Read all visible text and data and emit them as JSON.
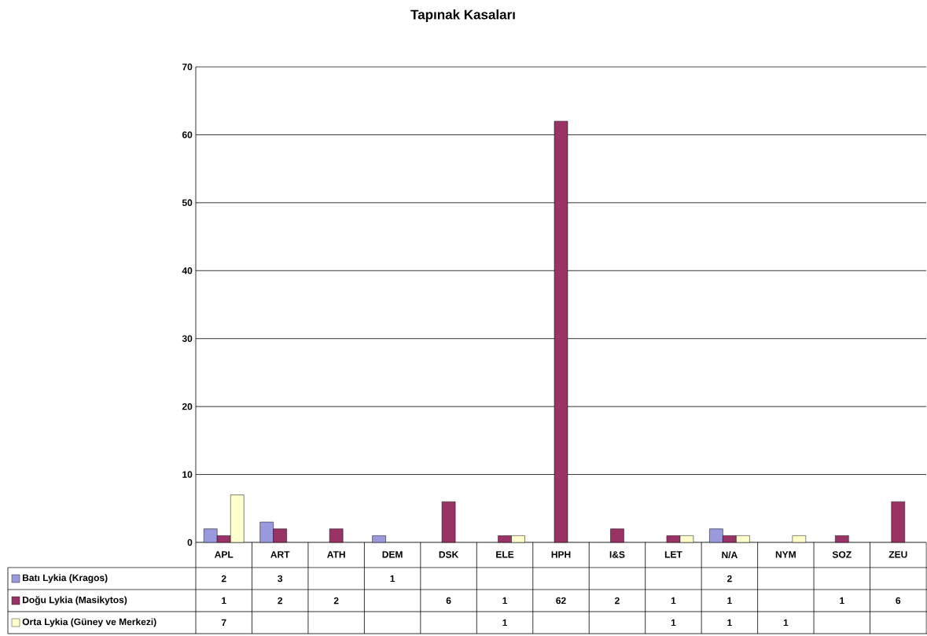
{
  "chart_data": {
    "type": "bar",
    "title": "Tapınak Kasaları",
    "categories": [
      "APL",
      "ART",
      "ATH",
      "DEM",
      "DSK",
      "ELE",
      "HPH",
      "I&S",
      "LET",
      "N/A",
      "NYM",
      "SOZ",
      "ZEU"
    ],
    "series": [
      {
        "name": "Batı Lykia (Kragos)",
        "color": "#9999dd",
        "values": [
          2,
          3,
          null,
          1,
          null,
          null,
          null,
          null,
          null,
          2,
          null,
          null,
          null
        ]
      },
      {
        "name": "Doğu Lykia (Masikytos)",
        "color": "#993366",
        "values": [
          1,
          2,
          2,
          null,
          6,
          1,
          62,
          2,
          1,
          1,
          null,
          1,
          6
        ]
      },
      {
        "name": "Orta Lykia (Güney ve Merkezi)",
        "color": "#ffffcc",
        "values": [
          7,
          null,
          null,
          null,
          null,
          1,
          null,
          null,
          1,
          1,
          1,
          null,
          null
        ]
      }
    ],
    "ylim": [
      0,
      70
    ],
    "yticks": [
      0,
      10,
      20,
      30,
      40,
      50,
      60,
      70
    ],
    "grid": "y",
    "legend": "bottom",
    "data_labels": true
  }
}
